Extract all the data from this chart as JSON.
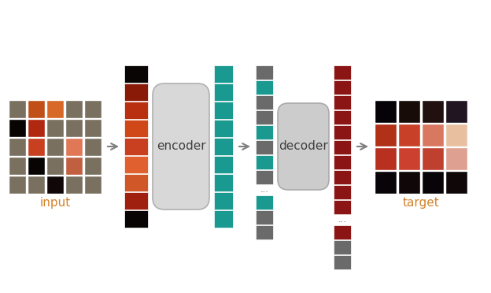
{
  "bg_color": "#ffffff",
  "label_color": "#d4822a",
  "mask_color": "#7a7060",
  "teal_color": "#1a9990",
  "dark_red_color": "#8b1515",
  "encoder_box_color": "#d8d8d8",
  "encoder_box_edge": "#b0b0b0",
  "decoder_box_color": "#cccccc",
  "decoder_box_edge": "#aaaaaa",
  "arrow_color": "#808080",
  "grid_line_color": "#ffffff",
  "input_label": "input",
  "target_label": "target",
  "encoder_label": "encoder",
  "decoder_label": "decoder",
  "strip_colors": [
    "#0a0505",
    "#8a1a08",
    "#b83010",
    "#d04818",
    "#c84020",
    "#e06030",
    "#d05828",
    "#a02010",
    "#080404"
  ],
  "target_top_colors": [
    "#050208",
    "#180c08",
    "#201010",
    "#201520"
  ],
  "target_r2_colors": [
    "#b03018",
    "#c84028",
    "#d87860",
    "#e8c0a0"
  ],
  "target_r3_colors": [
    "#b83020",
    "#cc4030",
    "#c04030",
    "#dea090"
  ],
  "target_bot_colors": [
    "#080408",
    "#100808",
    "#080408",
    "#100808"
  ],
  "image_colors": {
    "0,1": "#c05018",
    "0,2": "#d86828",
    "1,0": "#080404",
    "1,1": "#b02810",
    "2,1": "#c84020",
    "2,3": "#e07858",
    "3,1": "#080404",
    "3,3": "#c06040",
    "4,2": "#100808"
  },
  "dec_top_pattern": [
    "gray",
    "teal",
    "gray",
    "gray",
    "teal",
    "gray",
    "teal",
    "gray"
  ],
  "dec_bot_pattern": [
    "teal",
    "gray",
    "gray"
  ],
  "out_top_pattern": [
    "red",
    "red",
    "red",
    "red",
    "red",
    "red",
    "red",
    "red",
    "red",
    "red"
  ],
  "out_bot_pattern": [
    "red",
    "gray",
    "gray"
  ]
}
